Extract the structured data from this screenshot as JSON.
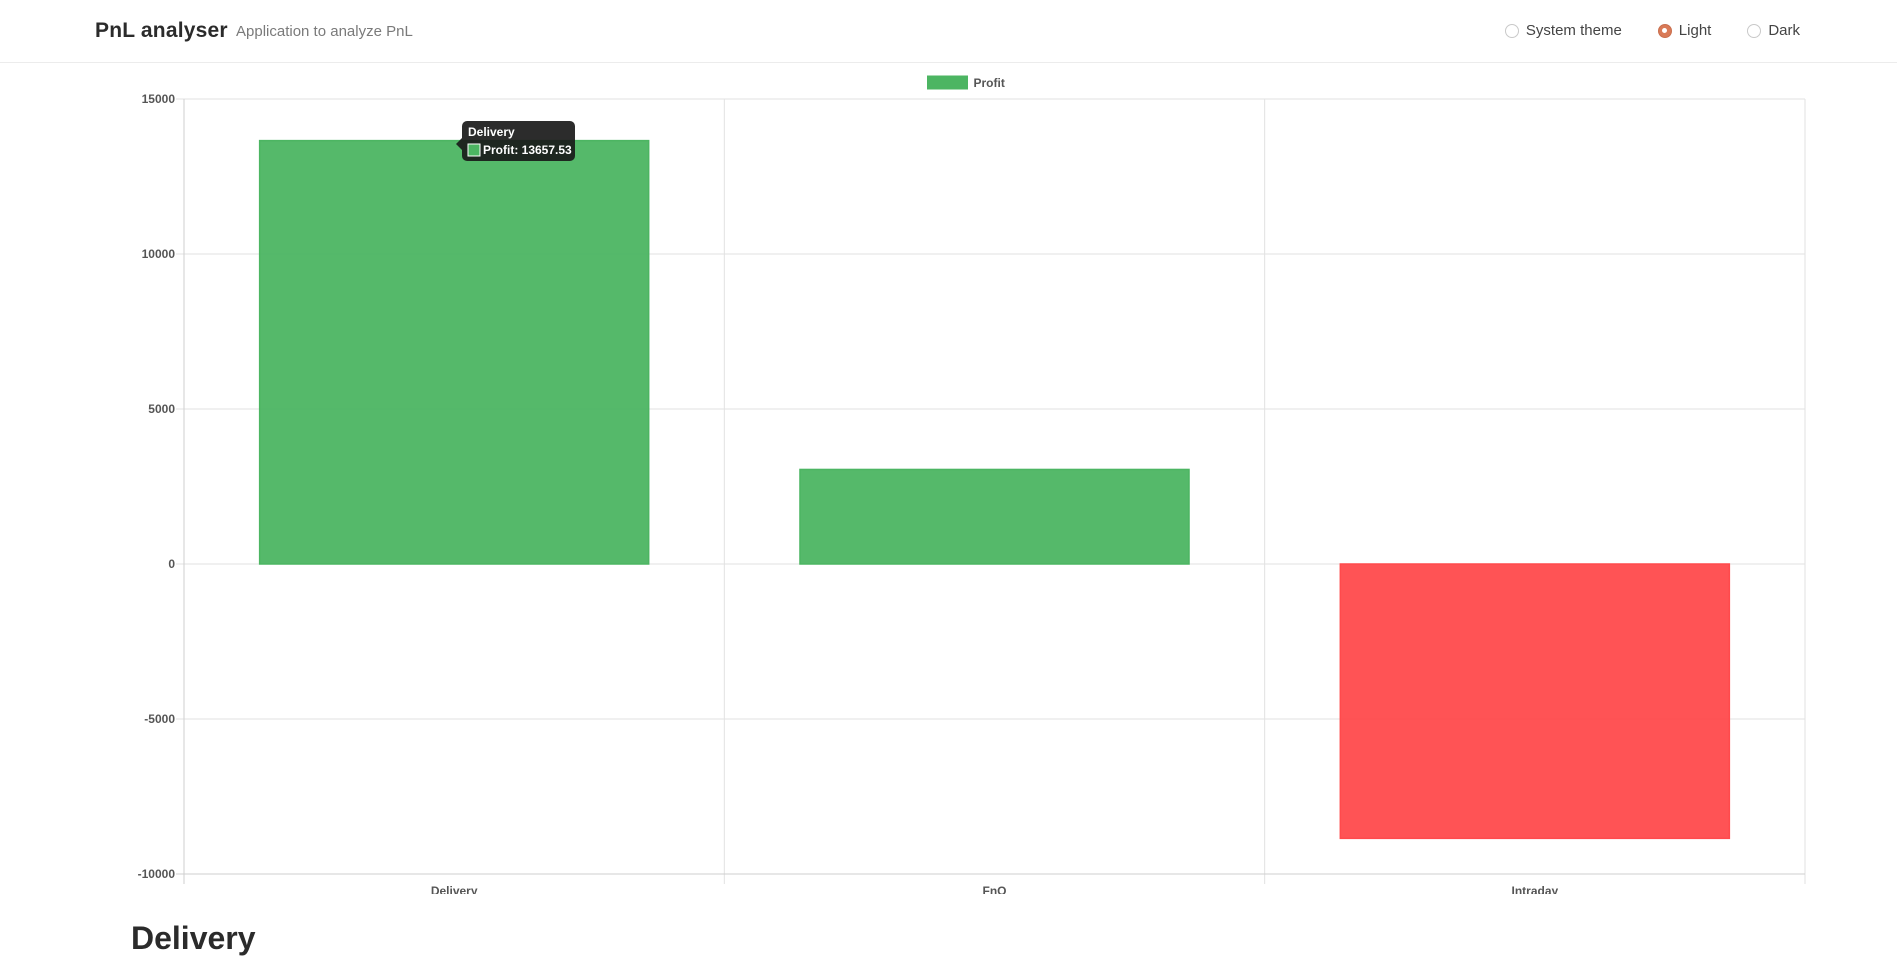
{
  "header": {
    "title": "PnL analyser",
    "subtitle": "Application to analyze PnL",
    "theme_options": [
      {
        "label": "System theme",
        "checked": false
      },
      {
        "label": "Light",
        "checked": true
      },
      {
        "label": "Dark",
        "checked": false
      }
    ]
  },
  "chart_data": {
    "type": "bar",
    "categories": [
      "Delivery",
      "FnO",
      "Intraday"
    ],
    "series": [
      {
        "name": "Profit",
        "values": [
          13657.53,
          3050,
          -8850
        ]
      }
    ],
    "bar_colors": [
      "#4cb562",
      "#4cb562",
      "#ff4a4c"
    ],
    "legend_color": "#4cb562",
    "ylim": [
      -10000,
      15000
    ],
    "yticks": [
      15000,
      10000,
      5000,
      0,
      -5000,
      -10000
    ],
    "grid": true,
    "legend_position": "top",
    "tooltip": {
      "title": "Delivery",
      "text": "Profit: 13657.53"
    }
  },
  "section": {
    "title": "Delivery"
  }
}
